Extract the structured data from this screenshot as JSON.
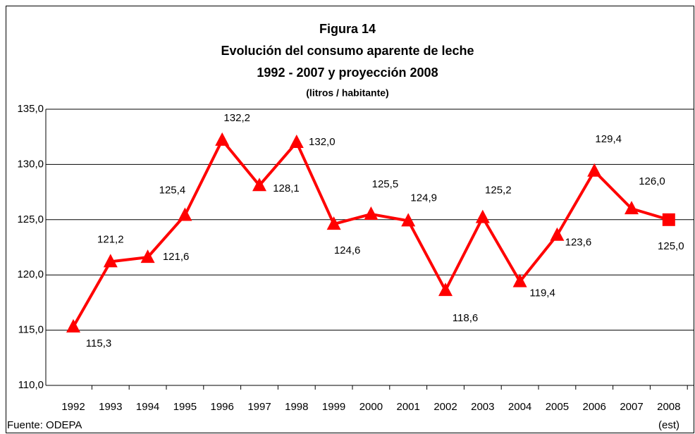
{
  "chart_data": {
    "type": "line",
    "title": "Figura 14",
    "subtitle": [
      "Evolución del consumo aparente de leche",
      "1992 - 2007 y proyección 2008"
    ],
    "unit_label": "(litros / habitante)",
    "source": "Fuente: ODEPA",
    "annotation": "(est)",
    "categories": [
      "1992",
      "1993",
      "1994",
      "1995",
      "1996",
      "1997",
      "1998",
      "1999",
      "2000",
      "2001",
      "2002",
      "2003",
      "2004",
      "2005",
      "2006",
      "2007",
      "2008"
    ],
    "series": [
      {
        "color": "#ff0000",
        "values": [
          115.3,
          121.2,
          121.6,
          125.4,
          132.2,
          128.1,
          132.0,
          124.6,
          125.5,
          124.9,
          118.6,
          125.2,
          119.4,
          123.6,
          129.4,
          126.0,
          125.0
        ],
        "value_labels": [
          "115,3",
          "121,2",
          "121,6",
          "125,4",
          "132,2",
          "128,1",
          "132,0",
          "124,6",
          "125,5",
          "124,9",
          "118,6",
          "125,2",
          "119,4",
          "123,6",
          "129,4",
          "126,0",
          "125,0"
        ]
      }
    ],
    "ylim": [
      110,
      135
    ],
    "yticks": [
      {
        "value": 110,
        "label": "110,0"
      },
      {
        "value": 115,
        "label": "115,0"
      },
      {
        "value": 120,
        "label": "120,0"
      },
      {
        "value": 125,
        "label": "125,0"
      },
      {
        "value": 130,
        "label": "130,0"
      },
      {
        "value": 135,
        "label": "135,0"
      }
    ],
    "grid": true
  }
}
